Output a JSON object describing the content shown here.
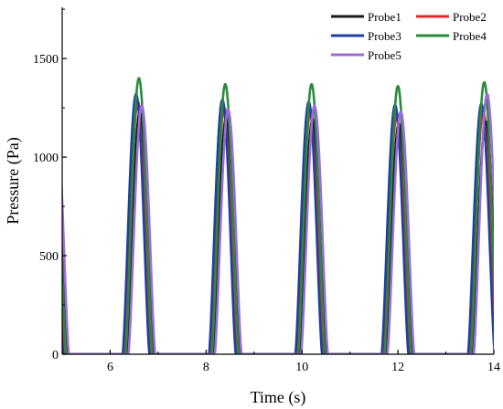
{
  "chart_data": {
    "type": "line",
    "xlabel": "Time (s)",
    "ylabel": "Pressure (Pa)",
    "xlim": [
      5.0,
      14.0
    ],
    "ylim": [
      0,
      1760
    ],
    "xticks": [
      6,
      8,
      10,
      12,
      14
    ],
    "yticks": [
      0,
      500,
      1000,
      1500
    ],
    "grid": false,
    "legend_position": "top-right",
    "legend_columns": 2,
    "series": [
      {
        "name": "Probe1",
        "color": "#1a1a1a",
        "peaks": [
          {
            "x": 6.62,
            "y": 1230
          },
          {
            "x": 8.42,
            "y": 1200
          },
          {
            "x": 10.22,
            "y": 1190
          },
          {
            "x": 12.02,
            "y": 1170
          },
          {
            "x": 13.83,
            "y": 1180
          }
        ]
      },
      {
        "name": "Probe2",
        "color": "#e2262c",
        "peaks": [
          {
            "x": 6.58,
            "y": 1280
          },
          {
            "x": 8.38,
            "y": 1250
          },
          {
            "x": 10.18,
            "y": 1240
          },
          {
            "x": 11.98,
            "y": 1220
          },
          {
            "x": 13.78,
            "y": 1230
          }
        ]
      },
      {
        "name": "Probe3",
        "color": "#1f3fa6",
        "peaks": [
          {
            "x": 6.54,
            "y": 1320
          },
          {
            "x": 8.34,
            "y": 1290
          },
          {
            "x": 10.14,
            "y": 1280
          },
          {
            "x": 11.94,
            "y": 1265
          },
          {
            "x": 13.74,
            "y": 1270
          }
        ]
      },
      {
        "name": "Probe4",
        "color": "#2a8a3e",
        "peaks": [
          {
            "x": 6.6,
            "y": 1400
          },
          {
            "x": 8.4,
            "y": 1370
          },
          {
            "x": 10.2,
            "y": 1370
          },
          {
            "x": 12.0,
            "y": 1360
          },
          {
            "x": 13.8,
            "y": 1380
          }
        ]
      },
      {
        "name": "Probe5",
        "color": "#9b6dd6",
        "peaks": [
          {
            "x": 6.66,
            "y": 1260
          },
          {
            "x": 8.46,
            "y": 1240
          },
          {
            "x": 10.26,
            "y": 1260
          },
          {
            "x": 12.06,
            "y": 1230
          },
          {
            "x": 13.86,
            "y": 1320
          }
        ]
      }
    ]
  }
}
